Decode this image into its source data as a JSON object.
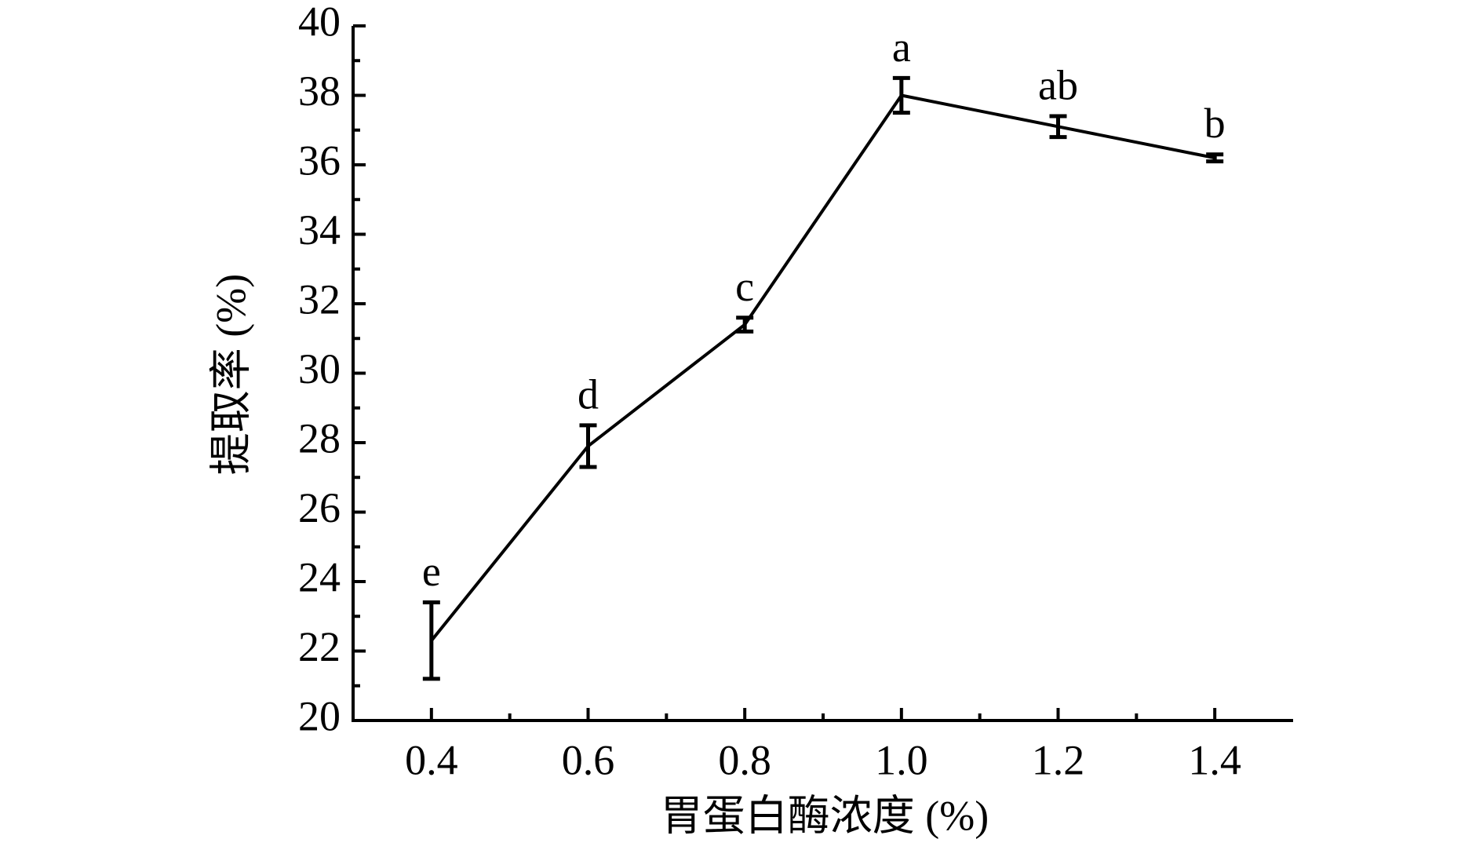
{
  "chart_data": {
    "type": "line",
    "x_label": "胃蛋白酶浓度 (%)",
    "y_label": "提取率 (%)",
    "x": [
      0.4,
      0.6,
      0.8,
      1.0,
      1.2,
      1.4
    ],
    "series": [
      {
        "color": "#000000",
        "values": [
          22.3,
          27.9,
          31.4,
          38.0,
          37.1,
          36.2
        ],
        "errors": [
          1.1,
          0.6,
          0.2,
          0.5,
          0.3,
          0.1
        ],
        "letters": [
          "e",
          "d",
          "c",
          "a",
          "ab",
          "b"
        ]
      }
    ],
    "xlim": [
      0.3,
      1.5
    ],
    "xticks": [
      0.4,
      0.6,
      0.8,
      {
        "value": 1,
        "label": "1.0"
      },
      1.2,
      1.4
    ],
    "xminorticks": [
      0.5,
      0.7,
      0.9,
      1.1,
      1.3
    ],
    "ylim": [
      20,
      40
    ],
    "yticks": [
      20,
      22,
      24,
      26,
      28,
      30,
      32,
      34,
      36,
      38,
      40
    ],
    "yminorticks": [
      21,
      23,
      25,
      27,
      29,
      31,
      33,
      35,
      37,
      39
    ],
    "grid": false
  }
}
